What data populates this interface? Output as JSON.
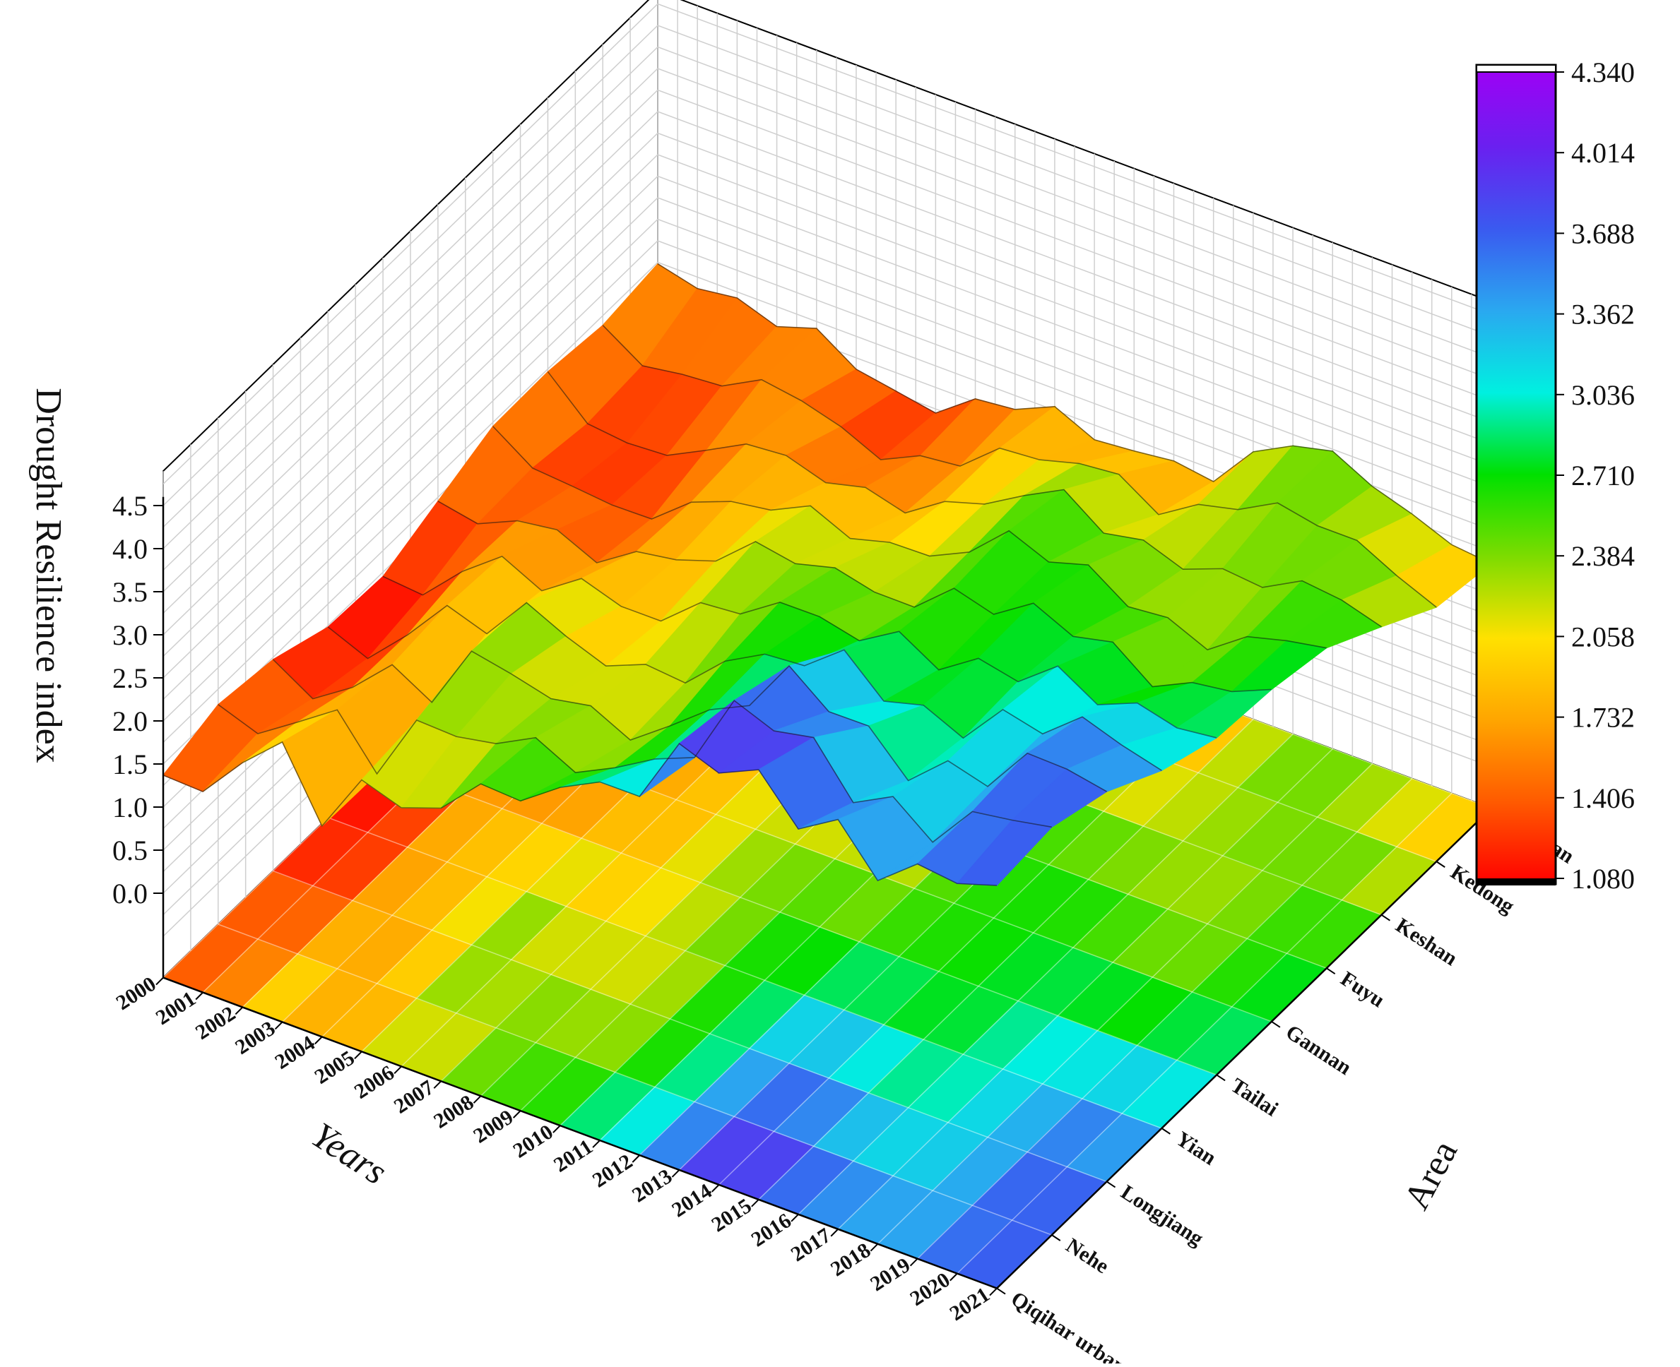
{
  "chart_data": {
    "type": "surface3d",
    "zlabel": "Drought Resilience index",
    "xlabel": "Years",
    "ylabel": "Area",
    "z_ticks": [
      "0.0",
      "0.5",
      "1.0",
      "1.5",
      "2.0",
      "2.5",
      "3.0",
      "3.5",
      "4.0",
      "4.5"
    ],
    "zlim": [
      0.0,
      4.5
    ],
    "years": [
      "2000",
      "2001",
      "2002",
      "2003",
      "2004",
      "2005",
      "2006",
      "2007",
      "2008",
      "2009",
      "2010",
      "2011",
      "2012",
      "2013",
      "2014",
      "2015",
      "2016",
      "2017",
      "2018",
      "2019",
      "2020",
      "2021"
    ],
    "areas": [
      "Qiqihar urban area",
      "Nehe",
      "Longjiang",
      "Yian",
      "Tailai",
      "Gannan",
      "Fuyu",
      "Keshan",
      "Kedong",
      "Baiquan"
    ],
    "colorbar": {
      "ticks": [
        "1.080",
        "1.406",
        "1.732",
        "2.058",
        "2.384",
        "2.710",
        "3.036",
        "3.362",
        "3.688",
        "4.014",
        "4.340"
      ],
      "min": 1.08,
      "max": 4.34,
      "colors": [
        "#ff0000",
        "#ff5a00",
        "#ffa500",
        "#ffe100",
        "#7ddc00",
        "#00e000",
        "#00f0e0",
        "#2aa8f0",
        "#3a5af0",
        "#6a20f0",
        "#a000f5"
      ]
    },
    "grid": true,
    "front_edge_values": [
      1.25,
      1.1,
      1.6,
      2.15,
      1.55,
      2.4,
      2.25,
      2.3,
      2.62,
      2.55,
      2.95,
      3.3,
      3.35,
      4.05,
      3.7,
      3.75,
      3.2,
      3.6,
      3.25,
      3.75,
      3.7,
      3.75
    ],
    "back_edge_values": [
      1.75,
      1.5,
      1.45,
      1.3,
      1.6,
      1.5,
      1.55,
      1.45,
      1.65,
      1.55,
      1.7,
      1.55,
      1.7,
      1.8,
      1.65,
      2.0,
      2.1,
      2.2,
      2.1,
      2.15,
      2.1,
      2.05
    ]
  }
}
